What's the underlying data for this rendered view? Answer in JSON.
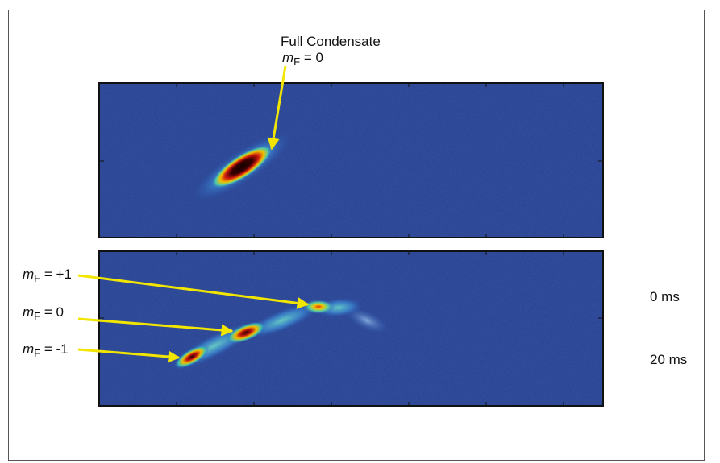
{
  "top_panel": {
    "annotation_title": "Full Condensate",
    "annotation_var": "m",
    "annotation_sub": "F",
    "annotation_value": " = 0"
  },
  "bottom_panel": {
    "labels": [
      {
        "var": "m",
        "sub": "F",
        "value": " = +1"
      },
      {
        "var": "m",
        "sub": "F",
        "value": " = 0"
      },
      {
        "var": "m",
        "sub": "F",
        "value": " = -1"
      }
    ],
    "time_labels": [
      "0 ms",
      "20 ms"
    ]
  },
  "colors": {
    "background": "#233f8f",
    "arrow": "#f2e600",
    "condensate_core": "#1a0000",
    "condensate_mid": "#d11a10",
    "condensate_edge": "#e8c000"
  }
}
